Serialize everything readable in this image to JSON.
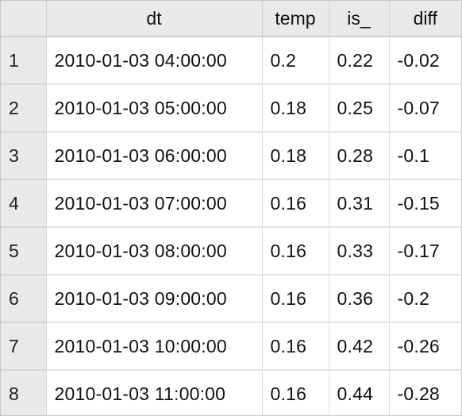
{
  "table": {
    "columns": [
      "dt",
      "temp",
      "is_",
      "diff"
    ],
    "rows": [
      {
        "index": "1",
        "dt": "2010-01-03 04:00:00",
        "temp": "0.2",
        "is_": "0.22",
        "diff": "-0.02"
      },
      {
        "index": "2",
        "dt": "2010-01-03 05:00:00",
        "temp": "0.18",
        "is_": "0.25",
        "diff": "-0.07"
      },
      {
        "index": "3",
        "dt": "2010-01-03 06:00:00",
        "temp": "0.18",
        "is_": "0.28",
        "diff": "-0.1"
      },
      {
        "index": "4",
        "dt": "2010-01-03 07:00:00",
        "temp": "0.16",
        "is_": "0.31",
        "diff": "-0.15"
      },
      {
        "index": "5",
        "dt": "2010-01-03 08:00:00",
        "temp": "0.16",
        "is_": "0.33",
        "diff": "-0.17"
      },
      {
        "index": "6",
        "dt": "2010-01-03 09:00:00",
        "temp": "0.16",
        "is_": "0.36",
        "diff": "-0.2"
      },
      {
        "index": "7",
        "dt": "2010-01-03 10:00:00",
        "temp": "0.16",
        "is_": "0.42",
        "diff": "-0.26"
      },
      {
        "index": "8",
        "dt": "2010-01-03 11:00:00",
        "temp": "0.16",
        "is_": "0.44",
        "diff": "-0.28"
      }
    ]
  }
}
